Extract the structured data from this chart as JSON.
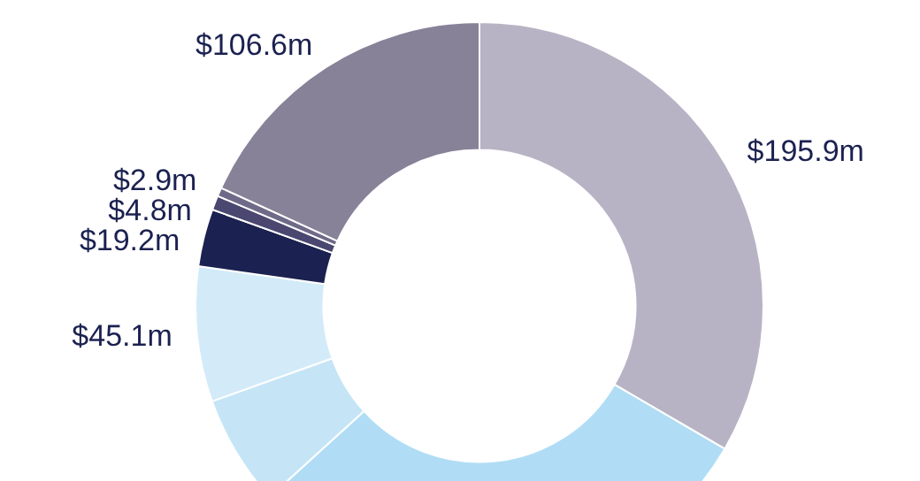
{
  "chart_data": {
    "type": "donut",
    "categories": [
      null,
      null,
      null,
      null,
      null,
      null,
      null,
      null
    ],
    "values": [
      195.9,
      175,
      37,
      45.1,
      19.2,
      4.8,
      2.9,
      106.6
    ],
    "value_labels": [
      "$195.9m",
      null,
      null,
      "$45.1m",
      "$19.2m",
      "$4.8m",
      "$2.9m",
      "$106.6m"
    ],
    "colors": [
      "#b8b3c4",
      "#b0ddf5",
      "#c5e5f7",
      "#d3ebf9",
      "#1b2150",
      "#4a4870",
      "#6e6a88",
      "#878298"
    ],
    "legend": false
  }
}
